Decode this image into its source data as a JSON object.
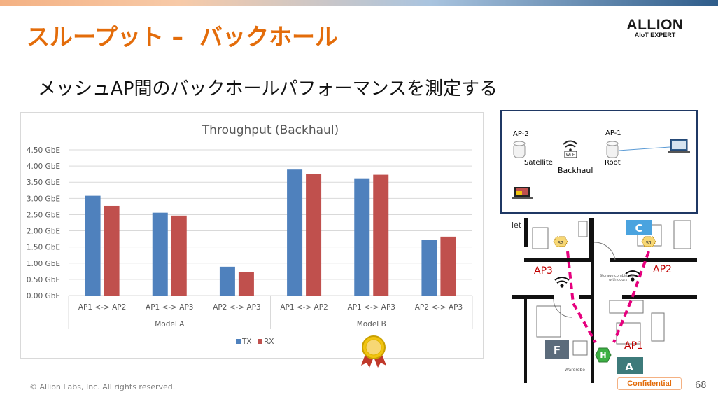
{
  "slide": {
    "title": "スループット –  バックホール",
    "subtitle": "メッシュAP間のバックホールパフォーマンスを測定する",
    "logo_main": "ALLION",
    "logo_sub": "AIoT EXPERT",
    "footer": "© Allion Labs, Inc. All rights reserved.",
    "confidential": "Confidential",
    "page_number": "68"
  },
  "chart_data": {
    "type": "bar",
    "title": "Throughput (Backhaul)",
    "ylim": [
      0,
      4.5
    ],
    "yticks": [
      "0.00 GbE",
      "0.50 GbE",
      "1.00 GbE",
      "1.50 GbE",
      "2.00 GbE",
      "2.50 GbE",
      "3.00 GbE",
      "3.50 GbE",
      "4.00 GbE",
      "4.50 GbE"
    ],
    "categories": [
      "AP1 <-> AP2",
      "AP1 <->  AP3",
      "AP2 <->  AP3",
      "AP1 <-> AP2",
      "AP1 <->  AP3",
      "AP2 <->  AP3"
    ],
    "groups": [
      {
        "label": "Model A",
        "span": 3
      },
      {
        "label": "Model B",
        "span": 3
      }
    ],
    "series": [
      {
        "name": "TX",
        "color": "#4f81bd",
        "values": [
          3.08,
          2.56,
          0.89,
          3.89,
          3.62,
          1.73
        ]
      },
      {
        "name": "RX",
        "color": "#c0504d",
        "values": [
          2.77,
          2.47,
          0.72,
          3.75,
          3.73,
          1.82
        ]
      }
    ],
    "grid": true,
    "legend": "bottom"
  },
  "diagram": {
    "ap2_label": "AP-2",
    "ap1_label": "AP-1",
    "satellite_label": "Satellite",
    "backhaul_label": "Backhaul",
    "root_label": "Root",
    "wifi_badge": "Wi Fi"
  },
  "floorplan": {
    "room_c": "C",
    "room_f": "F",
    "room_a": "A",
    "node_s1": "S1",
    "node_s2": "S2",
    "node_h": "H",
    "label_ap3": "AP3",
    "label_ap2": "AP2",
    "label_ap1": "AP1",
    "partial_word": "let",
    "storage_note": "Storage combination",
    "storage_note2": "with doors",
    "wardrobe": "Wardrobe"
  }
}
